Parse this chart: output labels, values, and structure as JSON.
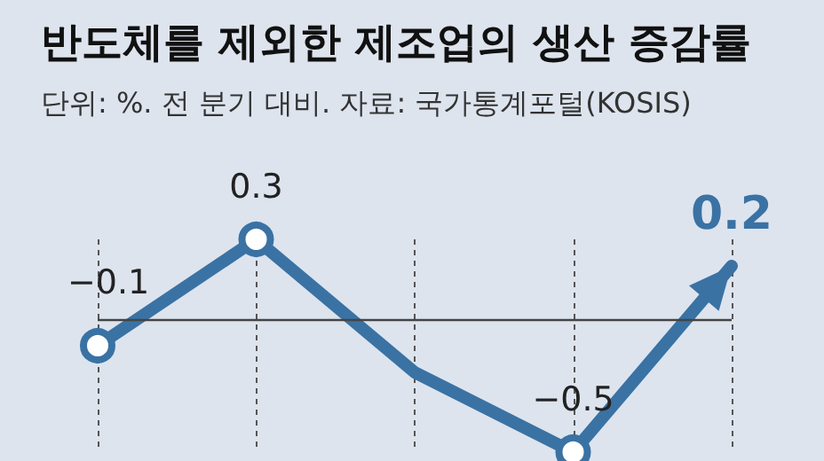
{
  "chart_data": {
    "type": "line",
    "title": "반도체를 제외한 제조업의 생산 증감률",
    "subtitle": "단위: %. 전 분기 대비. 자료: 국가통계포털(KOSIS)",
    "categories": [
      null,
      null,
      null,
      null,
      null
    ],
    "series": [
      {
        "color": "#3a72a4",
        "values": [
          -0.1,
          0.3,
          -0.2,
          -0.5,
          0.2
        ],
        "value_labels": [
          "−0.1",
          "0.3",
          null,
          "−0.5",
          "0.2"
        ]
      }
    ],
    "marker": "circle",
    "grid": "x",
    "ref_lines": [
      {
        "axis": "y",
        "value": 0,
        "color": "#444444"
      }
    ]
  }
}
